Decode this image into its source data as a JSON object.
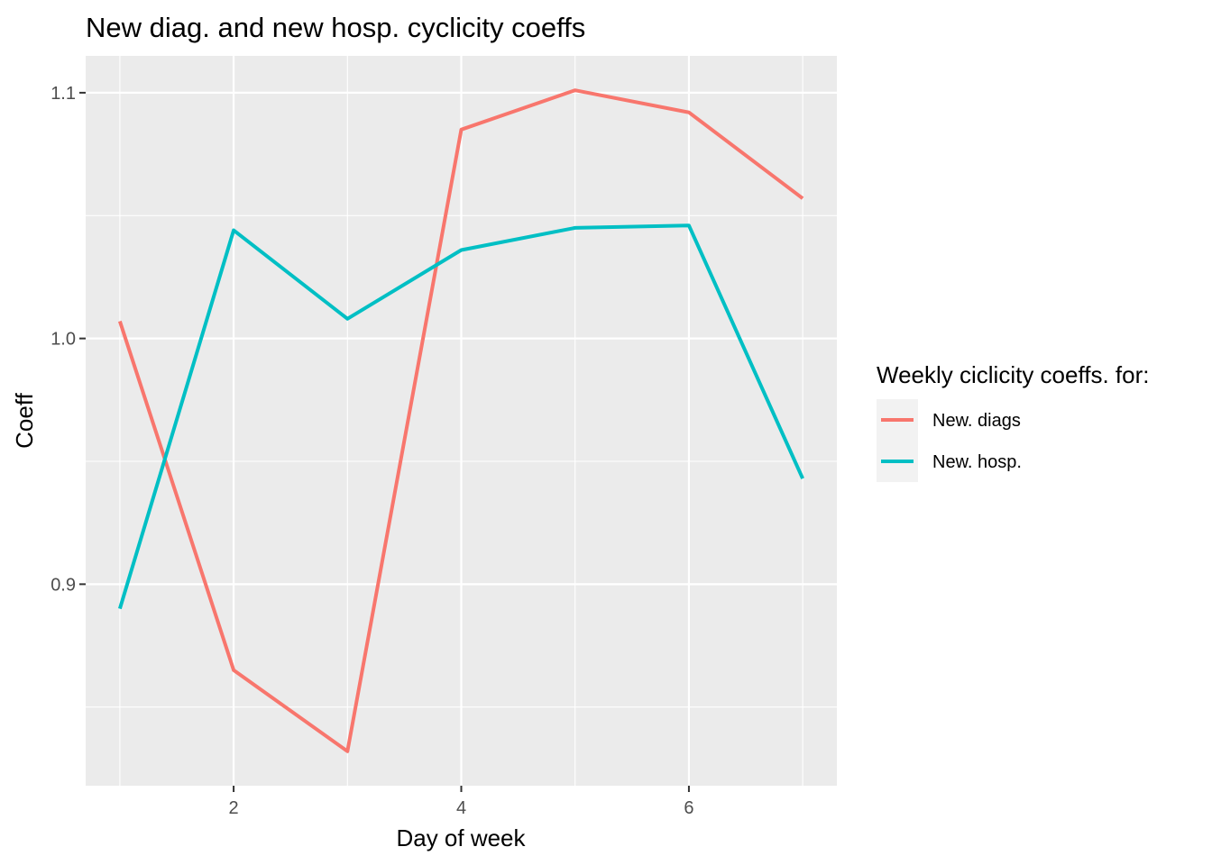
{
  "chart_data": {
    "type": "line",
    "title": "New diag. and new hosp. cyclicity coeffs",
    "xlabel": "Day of week",
    "ylabel": "Coeff",
    "x": [
      1,
      2,
      3,
      4,
      5,
      6,
      7
    ],
    "xlim": [
      0.7,
      7.3
    ],
    "ylim": [
      0.818,
      1.115
    ],
    "x_ticks": [
      2,
      4,
      6
    ],
    "x_tick_labels": [
      "2",
      "4",
      "6"
    ],
    "y_ticks": [
      0.9,
      1.0,
      1.1
    ],
    "y_tick_labels": [
      "0.9",
      "1.0",
      "1.1"
    ],
    "grid": true,
    "legend": {
      "title": "Weekly ciclicity coeffs. for:",
      "position": "right"
    },
    "series": [
      {
        "name": "New. diags",
        "color": "#F8766D",
        "values": [
          1.007,
          0.865,
          0.832,
          1.085,
          1.101,
          1.092,
          1.057
        ]
      },
      {
        "name": "New. hosp.",
        "color": "#00BFC4",
        "values": [
          0.89,
          1.044,
          1.008,
          1.036,
          1.045,
          1.046,
          0.943
        ]
      }
    ]
  }
}
